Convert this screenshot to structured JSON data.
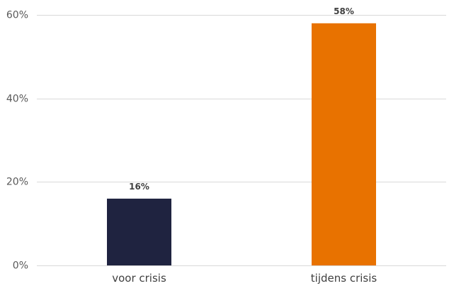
{
  "chart_data": {
    "type": "bar",
    "categories": [
      "voor crisis",
      "tijdens crisis"
    ],
    "values": [
      16,
      58
    ],
    "value_labels": [
      "16%",
      "58%"
    ],
    "colors": [
      "#1f2340",
      "#e87200"
    ],
    "ylim": [
      0,
      60
    ],
    "yticks": [
      0,
      20,
      40,
      60
    ],
    "ytick_labels": [
      "0%",
      "20%",
      "40%",
      "60%"
    ],
    "grid": true,
    "legend": "none",
    "title": "",
    "xlabel": "",
    "ylabel": ""
  }
}
